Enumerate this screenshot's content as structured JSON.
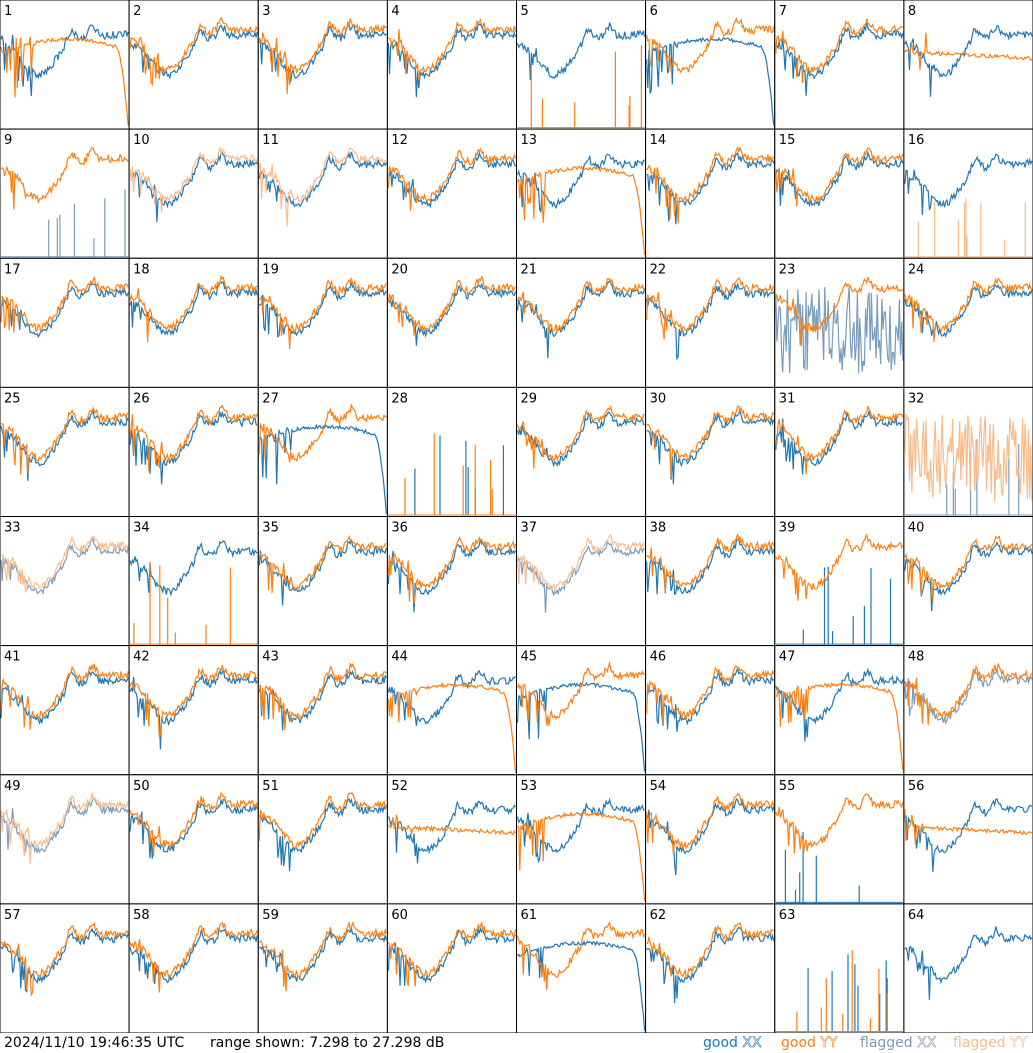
{
  "footer": {
    "timestamp": "2024/11/10 19:46:35 UTC",
    "range_text": "range shown: 7.298 to 27.298 dB"
  },
  "legend": [
    {
      "word": "good",
      "pol": "XX",
      "color": "#1f77b4"
    },
    {
      "word": "good",
      "pol": "YY",
      "color": "#ff7f0e"
    },
    {
      "word": "flagged",
      "pol": "XX",
      "color": "#7a9cbd"
    },
    {
      "word": "flagged",
      "pol": "YY",
      "color": "#f9bb8a"
    }
  ],
  "colors": {
    "good_xx": "#1f77b4",
    "good_yy": "#ff7f0e",
    "flagged_xx": "#7a9cbd",
    "flagged_yy": "#f9bb8a",
    "grid_line": "#000000"
  },
  "chart_data": {
    "type": "line",
    "layout": "8x8 small multiples",
    "ylim_db": [
      7.298,
      27.298
    ],
    "series_names": [
      "XX",
      "YY"
    ],
    "panels": [
      {
        "id": "1",
        "xx": "good",
        "yy": "good",
        "xx_shape": "normal",
        "yy_shape": "rolloff"
      },
      {
        "id": "2",
        "xx": "good",
        "yy": "good",
        "xx_shape": "normal",
        "yy_shape": "normal"
      },
      {
        "id": "3",
        "xx": "good",
        "yy": "good",
        "xx_shape": "normal",
        "yy_shape": "normal"
      },
      {
        "id": "4",
        "xx": "good",
        "yy": "good",
        "xx_shape": "normal",
        "yy_shape": "normal"
      },
      {
        "id": "5",
        "xx": "good",
        "yy": "good",
        "xx_shape": "normal",
        "yy_shape": "spikes"
      },
      {
        "id": "6",
        "xx": "good",
        "yy": "good",
        "xx_shape": "rolloff",
        "yy_shape": "normal"
      },
      {
        "id": "7",
        "xx": "good",
        "yy": "good",
        "xx_shape": "normal",
        "yy_shape": "normal"
      },
      {
        "id": "8",
        "xx": "good",
        "yy": "good",
        "xx_shape": "normal",
        "yy_shape": "flatter"
      },
      {
        "id": "9",
        "xx": "flagged",
        "yy": "good",
        "xx_shape": "spikes",
        "yy_shape": "normal"
      },
      {
        "id": "10",
        "xx": "good",
        "yy": "flagged",
        "xx_shape": "normal",
        "yy_shape": "normal"
      },
      {
        "id": "11",
        "xx": "good",
        "yy": "flagged",
        "xx_shape": "normal",
        "yy_shape": "normal"
      },
      {
        "id": "12",
        "xx": "good",
        "yy": "good",
        "xx_shape": "normal",
        "yy_shape": "normal"
      },
      {
        "id": "13",
        "xx": "good",
        "yy": "good",
        "xx_shape": "normal",
        "yy_shape": "rolloff"
      },
      {
        "id": "14",
        "xx": "good",
        "yy": "good",
        "xx_shape": "normal",
        "yy_shape": "normal"
      },
      {
        "id": "15",
        "xx": "good",
        "yy": "good",
        "xx_shape": "normal",
        "yy_shape": "normal"
      },
      {
        "id": "16",
        "xx": "good",
        "yy": "flagged",
        "xx_shape": "normal",
        "yy_shape": "spikes"
      },
      {
        "id": "17",
        "xx": "good",
        "yy": "good",
        "xx_shape": "normal",
        "yy_shape": "normal"
      },
      {
        "id": "18",
        "xx": "good",
        "yy": "good",
        "xx_shape": "normal",
        "yy_shape": "normal"
      },
      {
        "id": "19",
        "xx": "good",
        "yy": "good",
        "xx_shape": "normal",
        "yy_shape": "normal"
      },
      {
        "id": "20",
        "xx": "good",
        "yy": "good",
        "xx_shape": "normal",
        "yy_shape": "normal"
      },
      {
        "id": "21",
        "xx": "good",
        "yy": "good",
        "xx_shape": "normal",
        "yy_shape": "normal"
      },
      {
        "id": "22",
        "xx": "good",
        "yy": "good",
        "xx_shape": "normal",
        "yy_shape": "normal"
      },
      {
        "id": "23",
        "xx": "flagged",
        "yy": "good",
        "xx_shape": "noisy",
        "yy_shape": "normal"
      },
      {
        "id": "24",
        "xx": "good",
        "yy": "good",
        "xx_shape": "normal",
        "yy_shape": "normal"
      },
      {
        "id": "25",
        "xx": "good",
        "yy": "good",
        "xx_shape": "normal",
        "yy_shape": "normal"
      },
      {
        "id": "26",
        "xx": "good",
        "yy": "good",
        "xx_shape": "normal",
        "yy_shape": "normal"
      },
      {
        "id": "27",
        "xx": "good",
        "yy": "good",
        "xx_shape": "rolloff",
        "yy_shape": "normal"
      },
      {
        "id": "28",
        "xx": "good",
        "yy": "good",
        "xx_shape": "spikes",
        "yy_shape": "spikes"
      },
      {
        "id": "29",
        "xx": "good",
        "yy": "good",
        "xx_shape": "normal",
        "yy_shape": "normal"
      },
      {
        "id": "30",
        "xx": "good",
        "yy": "good",
        "xx_shape": "normal",
        "yy_shape": "normal"
      },
      {
        "id": "31",
        "xx": "good",
        "yy": "good",
        "xx_shape": "normal",
        "yy_shape": "normal"
      },
      {
        "id": "32",
        "xx": "flagged",
        "yy": "flagged",
        "xx_shape": "spikes",
        "yy_shape": "noisy"
      },
      {
        "id": "33",
        "xx": "flagged",
        "yy": "flagged",
        "xx_shape": "normal",
        "yy_shape": "normal"
      },
      {
        "id": "34",
        "xx": "good",
        "yy": "good",
        "xx_shape": "normal",
        "yy_shape": "spikes"
      },
      {
        "id": "35",
        "xx": "good",
        "yy": "good",
        "xx_shape": "normal",
        "yy_shape": "normal"
      },
      {
        "id": "36",
        "xx": "good",
        "yy": "good",
        "xx_shape": "normal",
        "yy_shape": "normal"
      },
      {
        "id": "37",
        "xx": "flagged",
        "yy": "flagged",
        "xx_shape": "normal",
        "yy_shape": "normal"
      },
      {
        "id": "38",
        "xx": "good",
        "yy": "good",
        "xx_shape": "normal",
        "yy_shape": "normal"
      },
      {
        "id": "39",
        "xx": "good",
        "yy": "good",
        "xx_shape": "spikes",
        "yy_shape": "normal"
      },
      {
        "id": "40",
        "xx": "good",
        "yy": "good",
        "xx_shape": "normal",
        "yy_shape": "normal"
      },
      {
        "id": "41",
        "xx": "good",
        "yy": "good",
        "xx_shape": "normal",
        "yy_shape": "normal"
      },
      {
        "id": "42",
        "xx": "good",
        "yy": "good",
        "xx_shape": "normal",
        "yy_shape": "normal"
      },
      {
        "id": "43",
        "xx": "good",
        "yy": "good",
        "xx_shape": "normal",
        "yy_shape": "normal"
      },
      {
        "id": "44",
        "xx": "good",
        "yy": "good",
        "xx_shape": "normal",
        "yy_shape": "rolloff"
      },
      {
        "id": "45",
        "xx": "good",
        "yy": "good",
        "xx_shape": "rolloff",
        "yy_shape": "normal"
      },
      {
        "id": "46",
        "xx": "good",
        "yy": "good",
        "xx_shape": "normal",
        "yy_shape": "normal"
      },
      {
        "id": "47",
        "xx": "good",
        "yy": "good",
        "xx_shape": "normal",
        "yy_shape": "rolloff"
      },
      {
        "id": "48",
        "xx": "flagged",
        "yy": "good",
        "xx_shape": "normal",
        "yy_shape": "normal"
      },
      {
        "id": "49",
        "xx": "flagged",
        "yy": "flagged",
        "xx_shape": "normal",
        "yy_shape": "normal"
      },
      {
        "id": "50",
        "xx": "good",
        "yy": "good",
        "xx_shape": "normal",
        "yy_shape": "normal"
      },
      {
        "id": "51",
        "xx": "good",
        "yy": "good",
        "xx_shape": "normal",
        "yy_shape": "normal"
      },
      {
        "id": "52",
        "xx": "good",
        "yy": "good",
        "xx_shape": "normal",
        "yy_shape": "flatter"
      },
      {
        "id": "53",
        "xx": "good",
        "yy": "good",
        "xx_shape": "normal",
        "yy_shape": "rolloff"
      },
      {
        "id": "54",
        "xx": "good",
        "yy": "good",
        "xx_shape": "normal",
        "yy_shape": "normal"
      },
      {
        "id": "55",
        "xx": "good",
        "yy": "good",
        "xx_shape": "spikes",
        "yy_shape": "normal"
      },
      {
        "id": "56",
        "xx": "good",
        "yy": "good",
        "xx_shape": "normal",
        "yy_shape": "flatter"
      },
      {
        "id": "57",
        "xx": "good",
        "yy": "good",
        "xx_shape": "normal",
        "yy_shape": "normal"
      },
      {
        "id": "58",
        "xx": "good",
        "yy": "good",
        "xx_shape": "normal",
        "yy_shape": "normal"
      },
      {
        "id": "59",
        "xx": "good",
        "yy": "good",
        "xx_shape": "normal",
        "yy_shape": "normal"
      },
      {
        "id": "60",
        "xx": "good",
        "yy": "good",
        "xx_shape": "normal",
        "yy_shape": "normal"
      },
      {
        "id": "61",
        "xx": "good",
        "yy": "good",
        "xx_shape": "rolloff",
        "yy_shape": "normal"
      },
      {
        "id": "62",
        "xx": "good",
        "yy": "good",
        "xx_shape": "normal",
        "yy_shape": "normal"
      },
      {
        "id": "63",
        "xx": "good",
        "yy": "good",
        "xx_shape": "spikes",
        "yy_shape": "spikes"
      },
      {
        "id": "64",
        "xx": "good",
        "yy": "good",
        "xx_shape": "normal",
        "yy_shape": "absent"
      }
    ]
  }
}
